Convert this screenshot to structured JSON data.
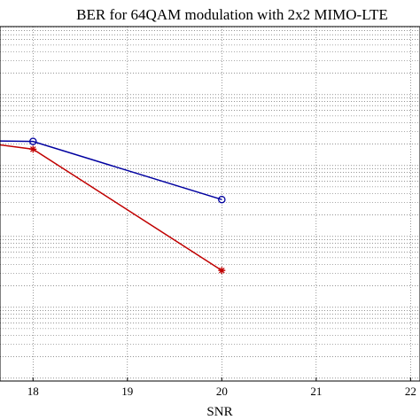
{
  "chart_data": {
    "type": "line",
    "title": "BER for 64QAM modulation with 2x2 MIMO-LTE",
    "xlabel": "SNR",
    "ylabel": "",
    "yscale": "log",
    "xlim": [
      17.65,
      22.1
    ],
    "ylim": [
      -6.04,
      -1.04
    ],
    "xticks": [
      18,
      19,
      20,
      21,
      22
    ],
    "grid": true,
    "series": [
      {
        "color": "#0000a0",
        "marker": "circle",
        "x": [
          16,
          18,
          20
        ],
        "y_log10": [
          -2.63,
          -2.66,
          -3.48
        ]
      },
      {
        "color": "#c00000",
        "marker": "star",
        "x": [
          16,
          18,
          20
        ],
        "y_log10": [
          -2.42,
          -2.77,
          -4.48
        ]
      }
    ]
  }
}
